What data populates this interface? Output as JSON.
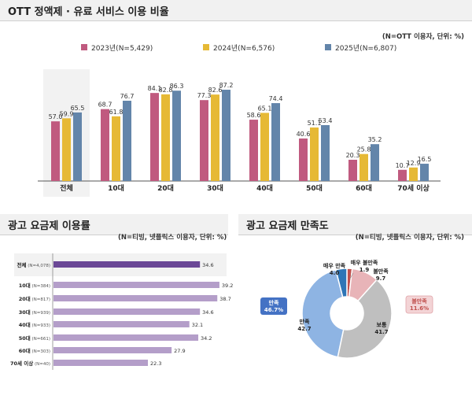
{
  "colors": {
    "y2023": "#c05a7f",
    "y2024": "#e6b935",
    "y2025": "#6385aa",
    "ad_bar": "#b49ec9",
    "ad_bar_total": "#6b4896",
    "total_bg": "#f2f2f2"
  },
  "chart_data": [
    {
      "type": "bar",
      "title": "OTT 정액제 · 유료 서비스 이용 비율",
      "note": "(N=OTT 이용자, 단위: %)",
      "categories": [
        "전체",
        "10대",
        "20대",
        "30대",
        "40대",
        "50대",
        "60대",
        "70세 이상"
      ],
      "series": [
        {
          "name": "2023년(N=5,429)",
          "values": [
            57.0,
            68.7,
            84.1,
            77.3,
            58.6,
            40.6,
            20.3,
            10.7
          ]
        },
        {
          "name": "2024년(N=6,576)",
          "values": [
            59.9,
            61.8,
            82.8,
            82.6,
            65.1,
            51.1,
            25.8,
            12.9
          ]
        },
        {
          "name": "2025년(N=6,807)",
          "values": [
            65.5,
            76.7,
            86.3,
            87.2,
            74.4,
            53.4,
            35.2,
            16.5
          ]
        }
      ],
      "value_labels": [
        [
          "57.0",
          "68.7",
          "84.1",
          "77.3",
          "58.6",
          "40.6",
          "20.3",
          "10.7"
        ],
        [
          "59.9",
          "61.8",
          "82.8",
          "82.6",
          "65.1",
          "51.1",
          "25.8",
          "12.9"
        ],
        [
          "65.5",
          "76.7",
          "86.3",
          "87.2",
          "74.4",
          "53.4",
          "35.2",
          "16.5"
        ]
      ],
      "ylim": [
        0,
        100
      ]
    },
    {
      "type": "bar",
      "orientation": "horizontal",
      "title": "광고 요금제 이용률",
      "note": "(N=티빙, 넷플릭스 이용자, 단위: %)",
      "categories": [
        "전체 (N=4,078)",
        "10대 (N=384)",
        "20대 (N=817)",
        "30대 (N=939)",
        "40대 (N=933)",
        "50대 (N=661)",
        "60대 (N=303)",
        "70세 이상 (N=40)"
      ],
      "values": [
        34.6,
        39.2,
        38.7,
        34.6,
        32.1,
        34.2,
        27.9,
        22.3
      ],
      "value_labels": [
        "34.6",
        "39.2",
        "38.7",
        "34.6",
        "32.1",
        "34.2",
        "27.9",
        "22.3"
      ],
      "xlim": [
        0,
        42
      ]
    },
    {
      "type": "pie",
      "title": "광고 요금제 만족도",
      "note": "(N=티빙, 넷플릭스 이용자, 단위: %)",
      "categories": [
        "매우 불만족",
        "불만족",
        "보통",
        "만족",
        "매우 만족"
      ],
      "values": [
        1.9,
        9.7,
        41.7,
        42.7,
        4.0
      ],
      "value_labels": [
        "1.9",
        "9.7",
        "41.7",
        "42.7",
        "4.0"
      ],
      "colors": [
        "#c0504d",
        "#e8b4b8",
        "#bfbfbf",
        "#8eb4e3",
        "#2e75b6"
      ],
      "summary": [
        {
          "label": "불만족",
          "value": "11.6%"
        },
        {
          "label": "만족",
          "value": "46.7%"
        }
      ]
    }
  ]
}
